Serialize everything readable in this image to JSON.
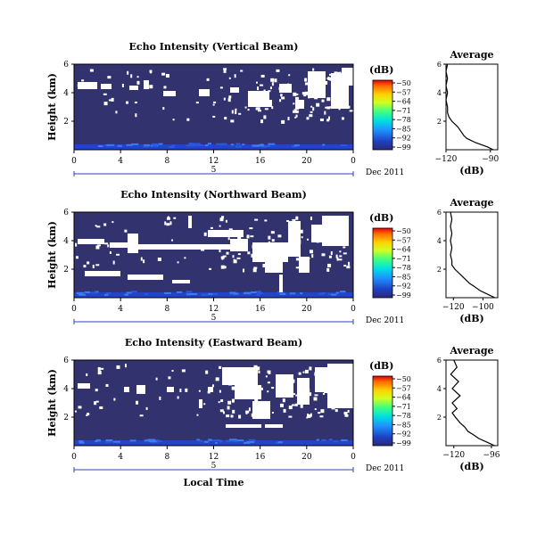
{
  "figure": {
    "date_label": "Dec 2011",
    "xlabel": "Local Time",
    "day_marker": "5",
    "colorbar_unit": "(dB)",
    "colorbar_ticks": [
      "−50",
      "−57",
      "−64",
      "−71",
      "−78",
      "−85",
      "−92",
      "−99"
    ],
    "average_title": "Average",
    "average_xlabel": "(dB)"
  },
  "chart_data": [
    {
      "type": "heatmap",
      "title": "Echo Intensity (Vertical Beam)",
      "ylabel": "Height (km)",
      "xlabel": "",
      "x_ticks": [
        "0",
        "4",
        "8",
        "12",
        "16",
        "20",
        "0"
      ],
      "y_ticks": [
        "6",
        "4",
        "2"
      ],
      "xlim": [
        0,
        24
      ],
      "ylim": [
        0,
        6
      ],
      "colorbar_range_db": [
        -99,
        -50
      ],
      "background_level_db": -95,
      "near_surface_level_db": -88,
      "average_profile": {
        "x_ticks": [
          "−120",
          "−90"
        ],
        "xlim": [
          -120,
          -85
        ],
        "height_km": [
          0.0,
          0.2,
          0.5,
          0.8,
          1.0,
          1.3,
          1.6,
          2.0,
          2.3,
          2.6,
          3.0,
          3.5,
          4.0,
          4.5,
          5.0,
          5.5,
          6.0
        ],
        "db": [
          -88,
          -92,
          -100,
          -106,
          -108,
          -110,
          -112,
          -116,
          -118,
          -119,
          -119,
          -120,
          -119,
          -120,
          -119,
          -120,
          -119
        ]
      }
    },
    {
      "type": "heatmap",
      "title": "Echo Intensity (Northward Beam)",
      "ylabel": "Height (km)",
      "xlabel": "",
      "x_ticks": [
        "0",
        "4",
        "8",
        "12",
        "16",
        "20",
        "0"
      ],
      "y_ticks": [
        "6",
        "4",
        "2"
      ],
      "xlim": [
        0,
        24
      ],
      "ylim": [
        0,
        6
      ],
      "colorbar_range_db": [
        -99,
        -50
      ],
      "background_level_db": -95,
      "near_surface_level_db": -88,
      "average_profile": {
        "x_ticks": [
          "−120",
          "−100"
        ],
        "xlim": [
          -125,
          -90
        ],
        "height_km": [
          0.0,
          0.2,
          0.5,
          0.8,
          1.0,
          1.3,
          1.6,
          2.0,
          2.3,
          2.6,
          3.0,
          3.5,
          4.0,
          4.5,
          5.0,
          5.5,
          6.0
        ],
        "db": [
          -92,
          -96,
          -102,
          -106,
          -109,
          -112,
          -115,
          -119,
          -121,
          -121,
          -122,
          -121,
          -122,
          -121,
          -122,
          -121,
          -122
        ]
      }
    },
    {
      "type": "heatmap",
      "title": "Echo Intensity (Eastward Beam)",
      "ylabel": "Height (km)",
      "xlabel": "Local Time",
      "x_ticks": [
        "0",
        "4",
        "8",
        "12",
        "16",
        "20",
        "0"
      ],
      "y_ticks": [
        "6",
        "4",
        "2"
      ],
      "xlim": [
        0,
        24
      ],
      "ylim": [
        0,
        6
      ],
      "colorbar_range_db": [
        -99,
        -50
      ],
      "background_level_db": -95,
      "near_surface_level_db": -88,
      "average_profile": {
        "x_ticks": [
          "−120",
          "−96"
        ],
        "xlim": [
          -125,
          -92
        ],
        "height_km": [
          0.0,
          0.2,
          0.5,
          0.8,
          1.0,
          1.3,
          1.6,
          2.0,
          2.3,
          2.6,
          3.0,
          3.5,
          4.0,
          4.5,
          5.0,
          5.5,
          6.0
        ],
        "db": [
          -94,
          -98,
          -104,
          -108,
          -111,
          -113,
          -116,
          -119,
          -121,
          -118,
          -121,
          -116,
          -121,
          -117,
          -122,
          -118,
          -120
        ]
      }
    }
  ]
}
